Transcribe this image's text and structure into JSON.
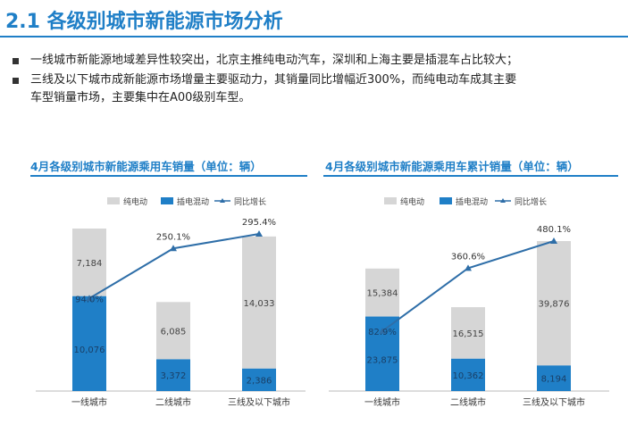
{
  "header": {
    "title": "2.1 各级别城市新能源市场分析"
  },
  "bullets": {
    "line1": "一线城市新能源地域差异性较突出，北京主推纯电动汽车，深圳和上海主要是插混车占比较大；",
    "line2": "三线及以下城市成新能源市场增量主要驱动力，其销量同比增幅近300%，而纯电动车成其主要",
    "line2_cont": "车型销量市场，主要集中在A00级别车型。"
  },
  "colors": {
    "accent": "#1f7fc7",
    "bev": "#d6d6d6",
    "phev": "#1f7fc7",
    "line": "#2e6ea8"
  },
  "chart_data": [
    {
      "type": "bar",
      "stacked": true,
      "title": "4月各级别城市新能源乘用车销量（单位：辆）",
      "categories": [
        "一线城市",
        "二线城市",
        "三线及以下城市"
      ],
      "series": [
        {
          "name": "纯电动",
          "values": [
            7184,
            6085,
            14033
          ]
        },
        {
          "name": "插电混动",
          "values": [
            10076,
            3372,
            2386
          ]
        }
      ],
      "line_series": {
        "name": "同比增长",
        "values": [
          94.0,
          250.1,
          295.4
        ],
        "labels": [
          "94.0%",
          "250.1%",
          "295.4%"
        ]
      },
      "value_labels": {
        "纯电动": [
          "7,184",
          "6,085",
          "14,033"
        ],
        "插电混动": [
          "10,076",
          "3,372",
          "2,386"
        ]
      },
      "legend": "top-left",
      "grid": false
    },
    {
      "type": "bar",
      "stacked": true,
      "title": "4月各级别城市新能源乘用车累计销量（单位：辆）",
      "categories": [
        "一线城市",
        "二线城市",
        "三线及以下城市"
      ],
      "series": [
        {
          "name": "纯电动",
          "values": [
            15384,
            16515,
            39876
          ]
        },
        {
          "name": "插电混动",
          "values": [
            23875,
            10362,
            8194
          ]
        }
      ],
      "line_series": {
        "name": "同比增长",
        "values": [
          82.9,
          360.6,
          480.1
        ],
        "labels": [
          "82.9%",
          "360.6%",
          "480.1%"
        ]
      },
      "value_labels": {
        "纯电动": [
          "15,384",
          "16,515",
          "39,876"
        ],
        "插电混动": [
          "23,875",
          "10,362",
          "8,194"
        ]
      },
      "legend": "top-left",
      "grid": false
    }
  ]
}
